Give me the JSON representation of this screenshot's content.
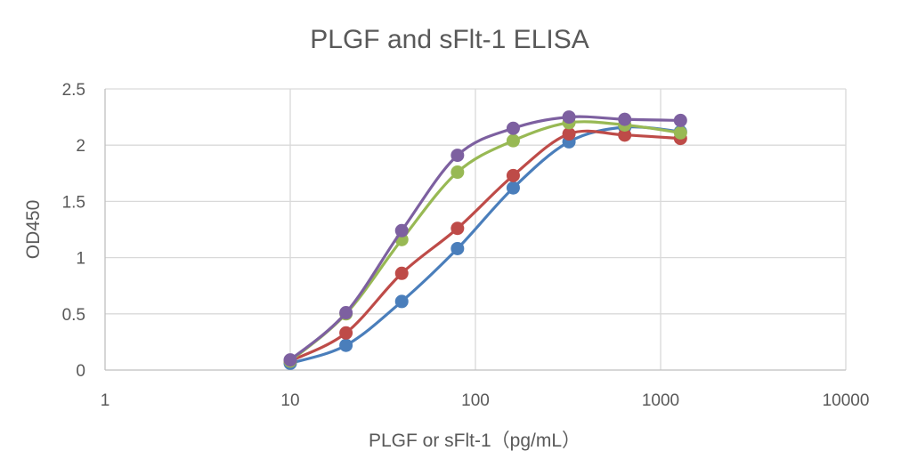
{
  "chart_data": {
    "type": "line",
    "title": "PLGF and sFlt-1 ELISA",
    "xlabel": "PLGF or sFlt-1（pg/mL）",
    "ylabel": "OD450",
    "xscale": "log",
    "xlim": [
      1,
      10000
    ],
    "ylim": [
      0,
      2.5
    ],
    "x_ticks": [
      1,
      10,
      100,
      1000,
      10000
    ],
    "x_tick_labels": [
      "1",
      "10",
      "100",
      "1000",
      "10000"
    ],
    "y_ticks": [
      0,
      0.5,
      1,
      1.5,
      2,
      2.5
    ],
    "y_tick_labels": [
      "0",
      "0.5",
      "1",
      "1.5",
      "2",
      "2.5"
    ],
    "grid": true,
    "legend": "none",
    "x": [
      10,
      20,
      40,
      80,
      160,
      320,
      640,
      1280
    ],
    "series": [
      {
        "name": "series-1",
        "color": "#4a7ebb",
        "values": [
          0.06,
          0.22,
          0.61,
          1.08,
          1.62,
          2.03,
          2.16,
          2.12
        ]
      },
      {
        "name": "series-2",
        "color": "#be4b48",
        "values": [
          0.08,
          0.33,
          0.86,
          1.26,
          1.73,
          2.1,
          2.09,
          2.06
        ]
      },
      {
        "name": "series-3",
        "color": "#98b954",
        "values": [
          0.08,
          0.5,
          1.16,
          1.76,
          2.04,
          2.2,
          2.18,
          2.11
        ]
      },
      {
        "name": "series-4",
        "color": "#7d60a0",
        "values": [
          0.09,
          0.51,
          1.24,
          1.91,
          2.15,
          2.25,
          2.23,
          2.22
        ]
      }
    ]
  }
}
